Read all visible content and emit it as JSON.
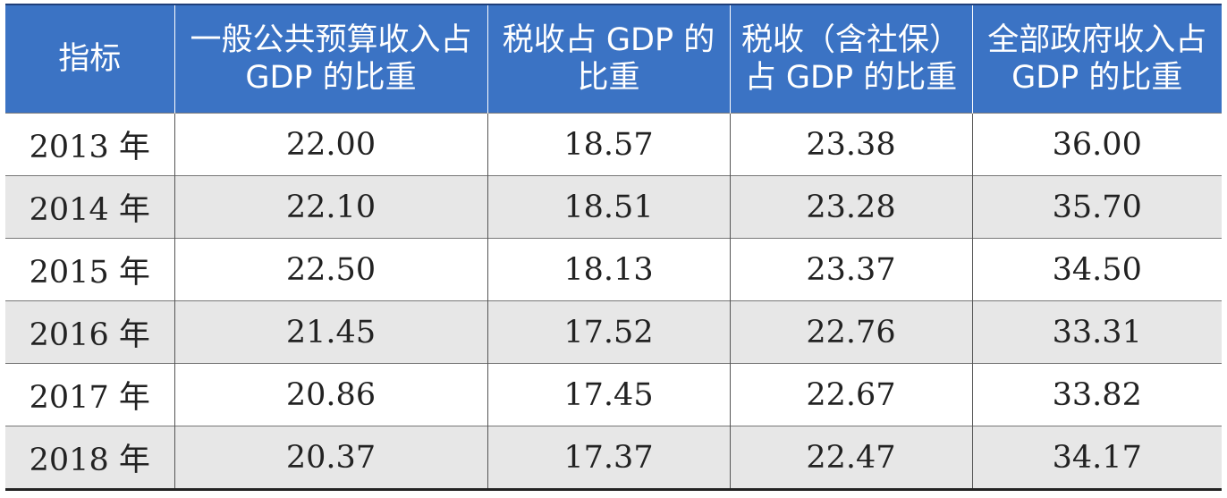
{
  "table": {
    "headers": [
      "指标",
      "一般公共预算收入占 GDP 的比重",
      "税收占 GDP 的比重",
      "税收（含社保）占 GDP 的比重",
      "全部政府收入占 GDP 的比重"
    ],
    "rows": [
      [
        "2013 年",
        "22.00",
        "18.57",
        "23.38",
        "36.00"
      ],
      [
        "2014 年",
        "22.10",
        "18.51",
        "23.28",
        "35.70"
      ],
      [
        "2015 年",
        "22.50",
        "18.13",
        "23.37",
        "34.50"
      ],
      [
        "2016 年",
        "21.45",
        "17.52",
        "22.76",
        "33.31"
      ],
      [
        "2017 年",
        "20.86",
        "17.45",
        "22.67",
        "33.82"
      ],
      [
        "2018 年",
        "20.37",
        "17.37",
        "22.47",
        "34.17"
      ]
    ]
  },
  "colors": {
    "header_bg": "#3b73c4",
    "header_text": "#ffffff",
    "alt_row_bg": "#e7e7e7"
  }
}
